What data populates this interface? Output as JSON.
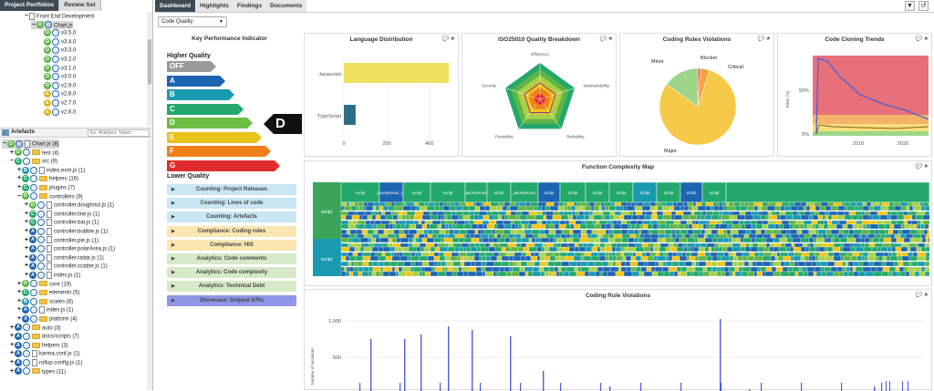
{
  "left_tabs": [
    "Project Portfolios",
    "Review Set"
  ],
  "portfolio_tree": [
    {
      "indent": 3,
      "pm": "−",
      "badge": "",
      "type": "file",
      "label": "Front End Development"
    },
    {
      "indent": 4,
      "pm": "−",
      "badge": "D",
      "type": "arrow",
      "label": "Chart.js",
      "selected": true
    },
    {
      "indent": 5,
      "pm": "",
      "badge": "D",
      "type": "arrow",
      "label": "v3.5.0"
    },
    {
      "indent": 5,
      "pm": "",
      "badge": "D",
      "type": "arrow",
      "label": "v3.4.0"
    },
    {
      "indent": 5,
      "pm": "",
      "badge": "D",
      "type": "arrow",
      "label": "v3.3.0"
    },
    {
      "indent": 5,
      "pm": "",
      "badge": "D",
      "type": "arrow",
      "label": "v3.2.0"
    },
    {
      "indent": 5,
      "pm": "",
      "badge": "D",
      "type": "arrow",
      "label": "v3.1.0"
    },
    {
      "indent": 5,
      "pm": "",
      "badge": "D",
      "type": "arrow",
      "label": "v3.0.0"
    },
    {
      "indent": 5,
      "pm": "",
      "badge": "D",
      "type": "arrow",
      "label": "v2.9.0"
    },
    {
      "indent": 5,
      "pm": "",
      "badge": "E",
      "type": "arrow",
      "label": "v2.8.0"
    },
    {
      "indent": 5,
      "pm": "",
      "badge": "E",
      "type": "arrow",
      "label": "v2.7.0"
    },
    {
      "indent": 5,
      "pm": "",
      "badge": "E",
      "type": "arrow",
      "label": "v2.6.0"
    }
  ],
  "artefacts_label": "Artefacts",
  "artefacts_search_placeholder": "Ex: Artefact, %fact",
  "artefact_tree": [
    {
      "indent": 0,
      "pm": "−",
      "badge": "D",
      "folder": false,
      "label": "Chart.js (8)",
      "selected": true
    },
    {
      "indent": 1,
      "pm": "+",
      "badge": "D",
      "folder": true,
      "label": "test (4)"
    },
    {
      "indent": 1,
      "pm": "−",
      "badge": "C",
      "folder": true,
      "label": "src (9)"
    },
    {
      "indent": 2,
      "pm": "+",
      "badge": "B",
      "folder": false,
      "label": "index.esm.js (1)"
    },
    {
      "indent": 2,
      "pm": "+",
      "badge": "C",
      "folder": true,
      "label": "helpers (16)"
    },
    {
      "indent": 2,
      "pm": "+",
      "badge": "C",
      "folder": true,
      "label": "plugins (7)"
    },
    {
      "indent": 2,
      "pm": "−",
      "badge": "D",
      "folder": true,
      "label": "controllers (9)"
    },
    {
      "indent": 3,
      "pm": "+",
      "badge": "D",
      "folder": false,
      "label": "controller.doughnut.js (1)"
    },
    {
      "indent": 3,
      "pm": "+",
      "badge": "C",
      "folder": false,
      "label": "controller.line.js (1)"
    },
    {
      "indent": 3,
      "pm": "+",
      "badge": "C",
      "folder": false,
      "label": "controller.bar.js (1)"
    },
    {
      "indent": 3,
      "pm": "+",
      "badge": "A",
      "folder": false,
      "label": "controller.bubble.js (1)"
    },
    {
      "indent": 3,
      "pm": "+",
      "badge": "A",
      "folder": false,
      "label": "controller.pie.js (1)"
    },
    {
      "indent": 3,
      "pm": "+",
      "badge": "A",
      "folder": false,
      "label": "controller.polarArea.js (1)"
    },
    {
      "indent": 3,
      "pm": "+",
      "badge": "A",
      "folder": false,
      "label": "controller.radar.js (1)"
    },
    {
      "indent": 3,
      "pm": "+",
      "badge": "A",
      "folder": false,
      "label": "controller.scatter.js (1)"
    },
    {
      "indent": 3,
      "pm": "+",
      "badge": "A",
      "folder": false,
      "label": "index.js (1)"
    },
    {
      "indent": 2,
      "pm": "+",
      "badge": "D",
      "folder": true,
      "label": "core (19)"
    },
    {
      "indent": 2,
      "pm": "+",
      "badge": "C",
      "folder": true,
      "label": "elements (5)"
    },
    {
      "indent": 2,
      "pm": "+",
      "badge": "B",
      "folder": true,
      "label": "scales (8)"
    },
    {
      "indent": 2,
      "pm": "+",
      "badge": "A",
      "folder": false,
      "label": "index.js (1)"
    },
    {
      "indent": 2,
      "pm": "+",
      "badge": "A",
      "folder": true,
      "label": "platform (4)"
    },
    {
      "indent": 1,
      "pm": "+",
      "badge": "A",
      "folder": true,
      "label": "auto (3)"
    },
    {
      "indent": 1,
      "pm": "+",
      "badge": "A",
      "folder": true,
      "label": "docs/scripts (7)"
    },
    {
      "indent": 1,
      "pm": "+",
      "badge": "A",
      "folder": true,
      "label": "helpers (3)"
    },
    {
      "indent": 1,
      "pm": "+",
      "badge": "A",
      "folder": false,
      "label": "karma.conf.js (1)"
    },
    {
      "indent": 1,
      "pm": "+",
      "badge": "A",
      "folder": false,
      "label": "rollup.config.js (1)"
    },
    {
      "indent": 1,
      "pm": "+",
      "badge": "A",
      "folder": true,
      "label": "types (11)"
    }
  ],
  "badge_colors": {
    "A": "#1c65b0",
    "B": "#1a9ab0",
    "C": "#23a86b",
    "D": "#5fb445",
    "E": "#e0b21a"
  },
  "top_tabs": [
    "Dashboard",
    "Highlights",
    "Findings",
    "Documents"
  ],
  "toolbar": {
    "filter_icon": "filter-icon",
    "history_icon": "history-icon"
  },
  "view_select": "Code Quality",
  "kpi": {
    "title": "Key Performance Indicator",
    "higher": "Higher Quality",
    "lower": "Lower Quality",
    "levels": [
      {
        "label": "OFF",
        "color": "#9a9a9a"
      },
      {
        "label": "A",
        "color": "#1c65b0"
      },
      {
        "label": "B",
        "color": "#1a9ab0"
      },
      {
        "label": "C",
        "color": "#23a86b"
      },
      {
        "label": "D",
        "color": "#6fbe44"
      },
      {
        "label": "E",
        "color": "#e9c21a"
      },
      {
        "label": "F",
        "color": "#f07f1a"
      },
      {
        "label": "G",
        "color": "#e02c2c"
      }
    ],
    "current": "D",
    "buttons": [
      {
        "label": "Counting: Project Releases",
        "color": "#c9e6f3"
      },
      {
        "label": "Counting: Lines of code",
        "color": "#c9e6f3"
      },
      {
        "label": "Counting: Artefacts",
        "color": "#c9e6f3"
      },
      {
        "label": "Compliance: Coding rules",
        "color": "#fbe6b1"
      },
      {
        "label": "Compliance: HIS",
        "color": "#fbe6b1"
      },
      {
        "label": "Analytics: Code comments",
        "color": "#d6e9c8"
      },
      {
        "label": "Analytics: Code complexity",
        "color": "#d6e9c8"
      },
      {
        "label": "Analytics: Technical Debt",
        "color": "#d6e9c8"
      },
      {
        "label": "Showcase: Snippet KPIs",
        "color": "#8f96e6"
      }
    ]
  },
  "panels": {
    "lang": "Language Distribution",
    "iso": "ISO25010 Quality Breakdown",
    "rules": "Coding Rules Violations",
    "clone": "Code Cloning Trends",
    "fcm": "Function Complexity Map",
    "crv": "Coding Rule Violations"
  },
  "chart_data": [
    {
      "type": "bar",
      "title": "Language Distribution",
      "categories": [
        "Javascript",
        "TypeScript"
      ],
      "values": [
        490,
        55
      ],
      "xticks": [
        0,
        200,
        400
      ],
      "xlim": [
        0,
        520
      ],
      "colors": [
        "#ede15e",
        "#2b6f86"
      ]
    },
    {
      "type": "radar",
      "title": "ISO25010 Quality Breakdown",
      "axes": [
        "Efficiency",
        "Maintainability",
        "Reliability",
        "Portability",
        "Security"
      ]
    },
    {
      "type": "pie",
      "title": "Coding Rules Violations",
      "labels": [
        "Blocker",
        "Critical",
        "Major",
        "Minor"
      ],
      "values": [
        1,
        4,
        80,
        15
      ],
      "colors": [
        "#e05050",
        "#f4a340",
        "#f7c948",
        "#9dd68a"
      ]
    },
    {
      "type": "line",
      "title": "Code Cloning Trends",
      "ylabel": "Ratio (%)",
      "yticks": [
        "0%",
        "50%"
      ],
      "xticks": [
        "2018",
        "2020"
      ]
    },
    {
      "type": "heatmap",
      "title": "Function Complexity Map",
      "top_labels": [
        "script",
        "_anonymous_(...)",
        "script",
        "script",
        "_anonymous_",
        "script",
        "_anonymous_",
        "script",
        "script",
        "script",
        "script",
        "script",
        "script",
        "script",
        "script"
      ],
      "row_labels": [
        "script",
        "script"
      ]
    },
    {
      "type": "bar",
      "title": "Coding Rule Violations",
      "ylabel": "Number of violations",
      "yticks": [
        "1,000",
        "500"
      ]
    }
  ]
}
